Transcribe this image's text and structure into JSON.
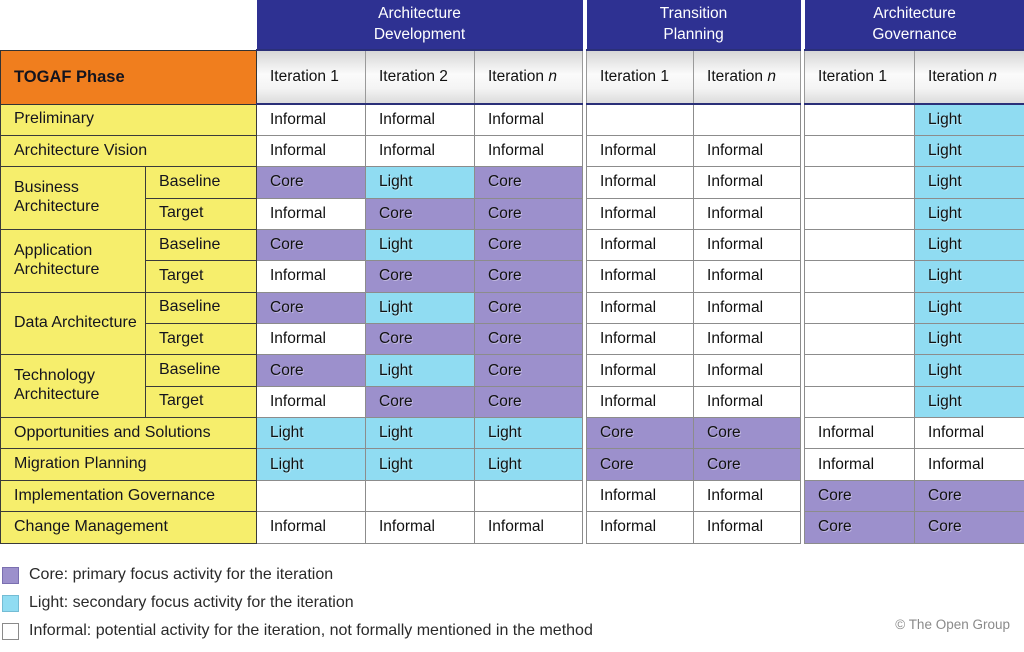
{
  "matrix": {
    "phase_header": "TOGAF Phase",
    "groups": [
      {
        "label": "Architecture\nDevelopment"
      },
      {
        "label": "Transition\nPlanning"
      },
      {
        "label": "Architecture\nGovernance"
      }
    ],
    "columns": [
      {
        "pre": "Iteration 1"
      },
      {
        "pre": "Iteration 2"
      },
      {
        "pre": "Iteration ",
        "it": "n"
      },
      {
        "pre": "Iteration 1"
      },
      {
        "pre": "Iteration ",
        "it": "n"
      },
      {
        "pre": "Iteration 1"
      },
      {
        "pre": "Iteration ",
        "it": "n"
      }
    ],
    "rows": [
      {
        "phase": "Preliminary",
        "cells": [
          "Informal",
          "Informal",
          "Informal",
          "",
          "",
          "",
          "Light"
        ]
      },
      {
        "phase": "Architecture Vision",
        "cells": [
          "Informal",
          "Informal",
          "Informal",
          "Informal",
          "Informal",
          "",
          "Light"
        ]
      },
      {
        "phase": "Business Architecture",
        "span": 2,
        "sub": "Baseline",
        "cells": [
          "Core",
          "Light",
          "Core",
          "Informal",
          "Informal",
          "",
          "Light"
        ]
      },
      {
        "cont": true,
        "sub": "Target",
        "cells": [
          "Informal",
          "Core",
          "Core",
          "Informal",
          "Informal",
          "",
          "Light"
        ]
      },
      {
        "phase": "Application Architecture",
        "span": 2,
        "sub": "Baseline",
        "cells": [
          "Core",
          "Light",
          "Core",
          "Informal",
          "Informal",
          "",
          "Light"
        ]
      },
      {
        "cont": true,
        "sub": "Target",
        "cells": [
          "Informal",
          "Core",
          "Core",
          "Informal",
          "Informal",
          "",
          "Light"
        ]
      },
      {
        "phase": "Data Architecture",
        "span": 2,
        "sub": "Baseline",
        "cells": [
          "Core",
          "Light",
          "Core",
          "Informal",
          "Informal",
          "",
          "Light"
        ]
      },
      {
        "cont": true,
        "sub": "Target",
        "cells": [
          "Informal",
          "Core",
          "Core",
          "Informal",
          "Informal",
          "",
          "Light"
        ]
      },
      {
        "phase": "Technology Architecture",
        "span": 2,
        "sub": "Baseline",
        "cells": [
          "Core",
          "Light",
          "Core",
          "Informal",
          "Informal",
          "",
          "Light"
        ]
      },
      {
        "cont": true,
        "sub": "Target",
        "cells": [
          "Informal",
          "Core",
          "Core",
          "Informal",
          "Informal",
          "",
          "Light"
        ]
      },
      {
        "phase": "Opportunities and Solutions",
        "cells": [
          "Light",
          "Light",
          "Light",
          "Core",
          "Core",
          "Informal",
          "Informal"
        ]
      },
      {
        "phase": "Migration Planning",
        "cells": [
          "Light",
          "Light",
          "Light",
          "Core",
          "Core",
          "Informal",
          "Informal"
        ]
      },
      {
        "phase": "Implementation Governance",
        "cells": [
          "",
          "",
          "",
          "Informal",
          "Informal",
          "Core",
          "Core"
        ]
      },
      {
        "phase": "Change Management",
        "cells": [
          "Informal",
          "Informal",
          "Informal",
          "Informal",
          "Informal",
          "Core",
          "Core"
        ]
      }
    ]
  },
  "legend": {
    "items": [
      {
        "swatch": "core",
        "text": "Core: primary focus activity for the iteration"
      },
      {
        "swatch": "light",
        "text": "Light: secondary focus activity for the iteration"
      },
      {
        "swatch": "informal",
        "text": "Informal: potential activity for the iteration, not formally mentioned in the method"
      }
    ]
  },
  "copyright": "© The Open Group",
  "colors": {
    "core": "#9C90CC",
    "light": "#90DCF2",
    "informal": "#FFFFFF",
    "phase_yellow": "#F6EE6C",
    "header_orange": "#F07E1E",
    "band_blue": "#2E3192"
  }
}
